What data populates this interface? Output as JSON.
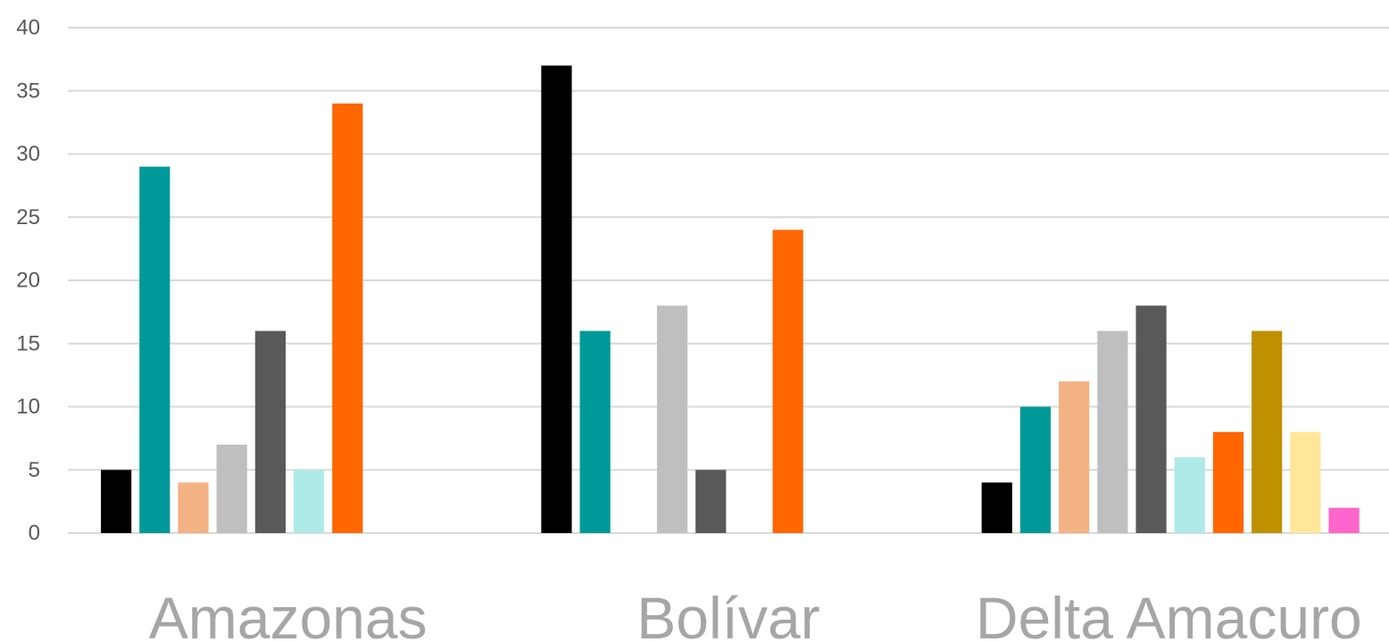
{
  "chart_data": {
    "type": "bar",
    "title": "",
    "xlabel": "",
    "ylabel": "",
    "ylim": [
      0,
      40
    ],
    "yticks": [
      0,
      5,
      10,
      15,
      20,
      25,
      30,
      35,
      40
    ],
    "grid": true,
    "legend": "none",
    "categories": [
      "Amazonas",
      "Bolívar",
      "Delta Amacuro"
    ],
    "series": [
      {
        "color": "#000000",
        "values": [
          5,
          37,
          4
        ]
      },
      {
        "color": "#009999",
        "values": [
          29,
          16,
          10
        ]
      },
      {
        "color": "#F4B183",
        "values": [
          4,
          0,
          12
        ]
      },
      {
        "color": "#BFBFBF",
        "values": [
          7,
          18,
          16
        ]
      },
      {
        "color": "#595959",
        "values": [
          16,
          5,
          18
        ]
      },
      {
        "color": "#AEEAE8",
        "values": [
          5,
          0,
          6
        ]
      },
      {
        "color": "#FF6600",
        "values": [
          34,
          24,
          8
        ]
      },
      {
        "color": "#BF9000",
        "values": [
          0,
          0,
          16
        ]
      },
      {
        "color": "#FFE699",
        "values": [
          0,
          0,
          8
        ]
      },
      {
        "color": "#FF66CC",
        "values": [
          0,
          0,
          2
        ]
      }
    ]
  }
}
